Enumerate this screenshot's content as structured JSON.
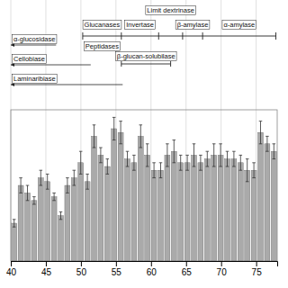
{
  "chart_data": {
    "type": "bar",
    "categories": [
      null,
      null,
      null,
      null,
      null,
      null,
      null,
      null,
      null,
      null,
      null,
      null,
      null,
      null,
      null,
      null,
      null,
      null,
      null,
      null,
      null,
      null,
      null,
      null,
      null,
      null,
      null,
      null,
      null,
      null,
      null,
      null,
      null,
      null,
      null,
      null,
      null,
      null,
      null,
      null
    ],
    "values": [
      0.1,
      0.2,
      0.18,
      0.16,
      0.22,
      0.21,
      0.17,
      0.12,
      0.2,
      0.22,
      0.26,
      0.21,
      0.33,
      0.28,
      0.25,
      0.35,
      0.34,
      0.27,
      0.26,
      0.33,
      0.28,
      0.24,
      0.24,
      0.28,
      0.29,
      0.26,
      0.26,
      0.28,
      0.26,
      0.27,
      0.28,
      0.28,
      0.27,
      0.27,
      0.26,
      0.24,
      0.24,
      0.34,
      0.31,
      0.29
    ],
    "errors": [
      0.01,
      0.02,
      0.02,
      0.01,
      0.02,
      0.02,
      0.01,
      0.01,
      0.02,
      0.02,
      0.03,
      0.02,
      0.03,
      0.02,
      0.02,
      0.03,
      0.03,
      0.02,
      0.02,
      0.03,
      0.03,
      0.02,
      0.02,
      0.03,
      0.03,
      0.02,
      0.02,
      0.03,
      0.02,
      0.02,
      0.03,
      0.03,
      0.02,
      0.02,
      0.02,
      0.03,
      0.02,
      0.03,
      0.02,
      0.02
    ],
    "color": "#aaaaaa",
    "xlim": [
      40,
      78
    ],
    "xticks": [
      40,
      45,
      50,
      55,
      60,
      65,
      70,
      75
    ],
    "ylim": [
      0,
      0.4
    ],
    "grid": true,
    "tick_labels": "x",
    "annotations": [
      {
        "text": "Glucanases"
      },
      {
        "text": "Peptidases"
      },
      {
        "text": "Invertase"
      },
      {
        "text": "Limit dextrinase"
      },
      {
        "text": "β-amylase"
      },
      {
        "text": "α-amylase"
      },
      {
        "text": "α-glucosidase"
      },
      {
        "text": "Cellobiase"
      },
      {
        "text": "Laminaribiase"
      },
      {
        "text": "β-glucan-solubilase"
      }
    ]
  }
}
